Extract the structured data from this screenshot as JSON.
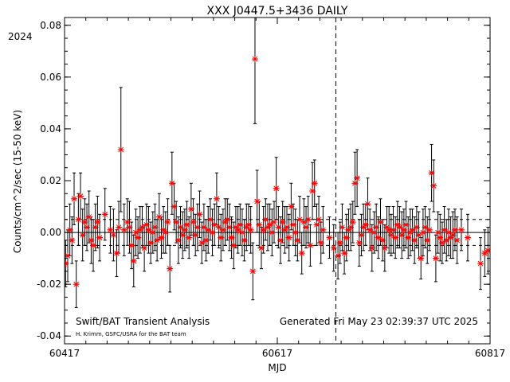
{
  "chart_data": {
    "type": "scatter",
    "title": "XXX J0447.5+3436 DAILY",
    "year_label": "2024",
    "xlabel": "MJD",
    "ylabel": "Counts/cm^2/sec (15-50 keV)",
    "xlim": [
      60417,
      60817
    ],
    "ylim": [
      -0.043,
      0.083
    ],
    "x_tick_labels": [
      "60417",
      "60617",
      "60817"
    ],
    "x_tick_values": [
      60417,
      60617,
      60817
    ],
    "y_tick_values": [
      -0.04,
      -0.02,
      0.0,
      0.02,
      0.04,
      0.06,
      0.08
    ],
    "y_tick_labels": [
      "-0.04",
      "-0.02",
      "0.00",
      "0.02",
      "0.04",
      "0.06",
      "0.08"
    ],
    "reference_lines": {
      "zero": 0.0,
      "dashed_levels": [
        0.005,
        -0.005
      ]
    },
    "vertical_marker_mjd": 60672,
    "footer_left": "Swift/BAT Transient Analysis",
    "footer_credit": "H. Krimm, GSFC/USRA for the BAT team",
    "footer_right": "Generated Fri May 23 02:39:37 UTC 2025",
    "marker_color": "#ff0000",
    "series": [
      {
        "x": [
          60418,
          60420,
          60422,
          60424,
          60426,
          60428,
          60430,
          60432,
          60434,
          60436,
          60438,
          60440,
          60442,
          60444,
          60446,
          60448,
          60450,
          60455,
          60460,
          60463,
          60466,
          60468,
          60470,
          60473,
          60476,
          60478,
          60480,
          60482,
          60484,
          60486,
          60488,
          60490,
          60492,
          60494,
          60496,
          60498,
          60500,
          60502,
          60504,
          60506,
          60508,
          60510,
          60512,
          60514,
          60516,
          60518,
          60520,
          60522,
          60524,
          60526,
          60528,
          60530,
          60532,
          60534,
          60536,
          60538,
          60540,
          60542,
          60544,
          60546,
          60548,
          60550,
          60552,
          60554,
          60556,
          60558,
          60560,
          60562,
          60564,
          60566,
          60568,
          60570,
          60572,
          60574,
          60576,
          60578,
          60580,
          60582,
          60584,
          60586,
          60588,
          60590,
          60592,
          60594,
          60596,
          60598,
          60600,
          60602,
          60604,
          60606,
          60608,
          60610,
          60612,
          60614,
          60616,
          60618,
          60620,
          60622,
          60624,
          60626,
          60628,
          60630,
          60632,
          60634,
          60636,
          60638,
          60640,
          60642,
          60644,
          60646,
          60648,
          60650,
          60652,
          60654,
          60656,
          60658,
          60660,
          60666,
          60670,
          60674,
          60676,
          60678,
          60680,
          60682,
          60684,
          60686,
          60688,
          60690,
          60692,
          60694,
          60696,
          60698,
          60700,
          60702,
          60704,
          60706,
          60708,
          60710,
          60712,
          60714,
          60716,
          60718,
          60720,
          60722,
          60724,
          60726,
          60728,
          60730,
          60732,
          60734,
          60736,
          60738,
          60740,
          60742,
          60744,
          60746,
          60748,
          60750,
          60752,
          60754,
          60756,
          60758,
          60760,
          60762,
          60764,
          60766,
          60768,
          60770,
          60772,
          60774,
          60776,
          60778,
          60780,
          60782,
          60784,
          60786,
          60790,
          60796,
          60808,
          60812,
          60815
        ],
        "y": [
          -0.012,
          -0.009,
          0.001,
          -0.003,
          0.013,
          -0.02,
          0.005,
          0.014,
          -0.001,
          0.004,
          0.002,
          0.006,
          -0.003,
          -0.005,
          0.002,
          0.004,
          -0.002,
          0.007,
          0.001,
          -0.001,
          -0.008,
          0.002,
          0.032,
          0.001,
          0.004,
          0.002,
          -0.005,
          -0.011,
          0.0,
          -0.002,
          0.001,
          0.002,
          -0.006,
          0.003,
          0.001,
          -0.004,
          0.0,
          0.002,
          -0.003,
          0.006,
          -0.002,
          0.001,
          0.0,
          0.004,
          -0.014,
          0.019,
          0.01,
          0.004,
          -0.003,
          0.002,
          -0.001,
          0.001,
          0.003,
          -0.002,
          0.009,
          0.004,
          -0.001,
          0.002,
          0.007,
          -0.004,
          0.002,
          -0.003,
          0.001,
          0.005,
          0.0,
          0.003,
          0.013,
          0.002,
          -0.002,
          0.001,
          0.004,
          0.005,
          0.002,
          -0.002,
          -0.005,
          0.002,
          0.001,
          0.003,
          0.0,
          -0.003,
          0.002,
          0.003,
          0.001,
          -0.015,
          0.067,
          0.012,
          0.003,
          -0.006,
          0.001,
          0.005,
          0.002,
          0.003,
          0.0,
          0.004,
          0.017,
          0.002,
          -0.003,
          0.004,
          0.001,
          0.002,
          -0.002,
          0.01,
          0.003,
          0.0,
          -0.003,
          0.005,
          -0.008,
          0.004,
          0.002,
          0.005,
          -0.005,
          0.016,
          0.019,
          0.003,
          0.005,
          -0.004,
          0.001,
          -0.002,
          -0.006,
          -0.009,
          -0.004,
          0.002,
          -0.008,
          -0.002,
          0.001,
          0.002,
          0.004,
          0.019,
          0.021,
          -0.004,
          -0.001,
          0.002,
          0.003,
          0.011,
          0.001,
          -0.006,
          0.0,
          0.002,
          -0.002,
          0.004,
          -0.003,
          -0.006,
          0.002,
          0.001,
          -0.001,
          0.001,
          -0.002,
          0.003,
          0.002,
          -0.001,
          0.001,
          0.003,
          -0.002,
          0.0,
          0.001,
          -0.003,
          0.002,
          -0.001,
          -0.01,
          0.0,
          0.002,
          -0.003,
          0.001,
          0.023,
          0.018,
          -0.01,
          0.0,
          -0.002,
          -0.004,
          0.001,
          -0.003,
          0.0,
          -0.002,
          -0.001,
          0.001,
          -0.003,
          0.001,
          -0.002,
          -0.012,
          -0.008,
          -0.007
        ],
        "err": [
          0.009,
          0.01,
          0.01,
          0.009,
          0.01,
          0.009,
          0.01,
          0.009,
          0.01,
          0.009,
          0.009,
          0.01,
          0.009,
          0.01,
          0.009,
          0.01,
          0.009,
          0.01,
          0.009,
          0.01,
          0.009,
          0.01,
          0.024,
          0.01,
          0.009,
          0.01,
          0.009,
          0.01,
          0.009,
          0.008,
          0.009,
          0.008,
          0.009,
          0.008,
          0.009,
          0.008,
          0.008,
          0.009,
          0.008,
          0.009,
          0.008,
          0.009,
          0.008,
          0.009,
          0.009,
          0.012,
          0.009,
          0.008,
          0.009,
          0.008,
          0.009,
          0.008,
          0.009,
          0.008,
          0.01,
          0.009,
          0.008,
          0.009,
          0.009,
          0.008,
          0.009,
          0.008,
          0.009,
          0.008,
          0.009,
          0.008,
          0.01,
          0.008,
          0.009,
          0.008,
          0.009,
          0.008,
          0.009,
          0.008,
          0.009,
          0.008,
          0.009,
          0.008,
          0.009,
          0.008,
          0.009,
          0.008,
          0.009,
          0.011,
          0.025,
          0.012,
          0.009,
          0.008,
          0.009,
          0.008,
          0.009,
          0.008,
          0.009,
          0.008,
          0.012,
          0.008,
          0.009,
          0.008,
          0.009,
          0.008,
          0.009,
          0.009,
          0.008,
          0.009,
          0.008,
          0.009,
          0.008,
          0.009,
          0.008,
          0.009,
          0.008,
          0.011,
          0.009,
          0.008,
          0.009,
          0.008,
          0.009,
          0.008,
          0.009,
          0.009,
          0.008,
          0.009,
          0.008,
          0.009,
          0.008,
          0.009,
          0.008,
          0.012,
          0.011,
          0.009,
          0.008,
          0.009,
          0.008,
          0.01,
          0.008,
          0.009,
          0.008,
          0.009,
          0.008,
          0.009,
          0.008,
          0.009,
          0.008,
          0.009,
          0.008,
          0.009,
          0.008,
          0.009,
          0.008,
          0.009,
          0.008,
          0.009,
          0.008,
          0.009,
          0.008,
          0.009,
          0.008,
          0.009,
          0.008,
          0.009,
          0.008,
          0.009,
          0.008,
          0.011,
          0.01,
          0.009,
          0.008,
          0.009,
          0.008,
          0.009,
          0.008,
          0.009,
          0.008,
          0.009,
          0.008,
          0.009,
          0.008,
          0.009,
          0.01,
          0.009,
          0.009
        ]
      }
    ]
  }
}
